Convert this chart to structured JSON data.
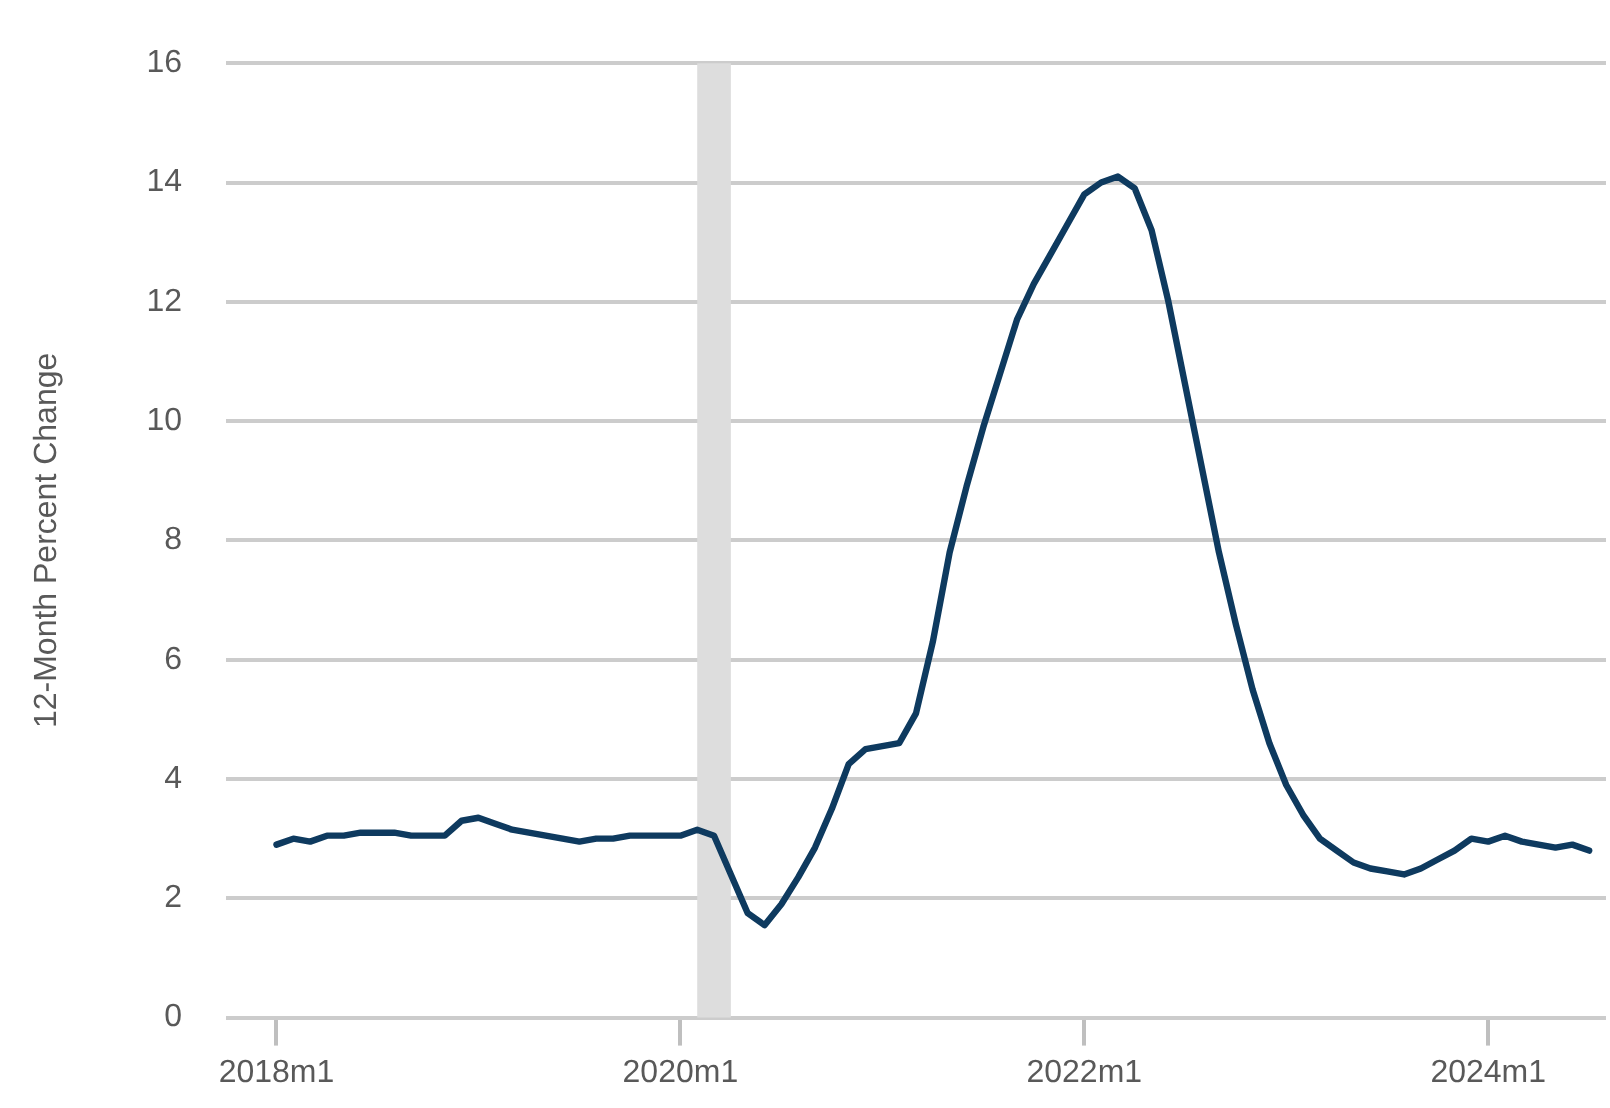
{
  "chart_data": {
    "type": "line",
    "ylabel": "12-Month Percent Change",
    "x": [
      "2018-01",
      "2018-02",
      "2018-03",
      "2018-04",
      "2018-05",
      "2018-06",
      "2018-07",
      "2018-08",
      "2018-09",
      "2018-10",
      "2018-11",
      "2018-12",
      "2019-01",
      "2019-02",
      "2019-03",
      "2019-04",
      "2019-05",
      "2019-06",
      "2019-07",
      "2019-08",
      "2019-09",
      "2019-10",
      "2019-11",
      "2019-12",
      "2020-01",
      "2020-02",
      "2020-03",
      "2020-04",
      "2020-05",
      "2020-06",
      "2020-07",
      "2020-08",
      "2020-09",
      "2020-10",
      "2020-11",
      "2020-12",
      "2021-01",
      "2021-02",
      "2021-03",
      "2021-04",
      "2021-05",
      "2021-06",
      "2021-07",
      "2021-08",
      "2021-09",
      "2021-10",
      "2021-11",
      "2021-12",
      "2022-01",
      "2022-02",
      "2022-03",
      "2022-04",
      "2022-05",
      "2022-06",
      "2022-07",
      "2022-08",
      "2022-09",
      "2022-10",
      "2022-11",
      "2022-12",
      "2023-01",
      "2023-02",
      "2023-03",
      "2023-04",
      "2023-05",
      "2023-06",
      "2023-07",
      "2023-08",
      "2023-09",
      "2023-10",
      "2023-11",
      "2023-12",
      "2024-01",
      "2024-02",
      "2024-03",
      "2024-04",
      "2024-05",
      "2024-06",
      "2024-07"
    ],
    "series": [
      {
        "color": "#0e3a5f",
        "values": [
          2.9,
          3.0,
          2.95,
          3.05,
          3.05,
          3.1,
          3.1,
          3.1,
          3.05,
          3.05,
          3.05,
          3.3,
          3.35,
          3.25,
          3.15,
          3.1,
          3.05,
          3.0,
          2.95,
          3.0,
          3.0,
          3.05,
          3.05,
          3.05,
          3.05,
          3.15,
          3.05,
          2.4,
          1.75,
          1.55,
          1.9,
          2.35,
          2.85,
          3.5,
          4.25,
          4.5,
          4.55,
          4.6,
          5.1,
          6.3,
          7.8,
          8.9,
          9.9,
          10.8,
          11.7,
          12.3,
          12.8,
          13.3,
          13.8,
          14.0,
          14.1,
          13.9,
          13.2,
          12.0,
          10.6,
          9.2,
          7.8,
          6.6,
          5.5,
          4.6,
          3.9,
          3.4,
          3.0,
          2.8,
          2.6,
          2.5,
          2.45,
          2.4,
          2.5,
          2.65,
          2.8,
          3.0,
          2.95,
          3.05,
          2.95,
          2.9,
          2.85,
          2.9,
          2.8
        ]
      }
    ],
    "xlim": [
      "2017-10",
      "2024-08"
    ],
    "xticks": [
      {
        "value": "2018-01",
        "label": "2018m1"
      },
      {
        "value": "2020-01",
        "label": "2020m1"
      },
      {
        "value": "2022-01",
        "label": "2022m1"
      },
      {
        "value": "2024-01",
        "label": "2024m1"
      }
    ],
    "ylim": [
      0,
      16
    ],
    "yticks": [
      0,
      2,
      4,
      6,
      8,
      10,
      12,
      14,
      16
    ],
    "bands": [
      {
        "axis": "x",
        "from": "2020-02",
        "to": "2020-04",
        "color": "#dddddd"
      }
    ],
    "grid": "y",
    "legend": false,
    "marker": "none",
    "line_style": "solid"
  }
}
